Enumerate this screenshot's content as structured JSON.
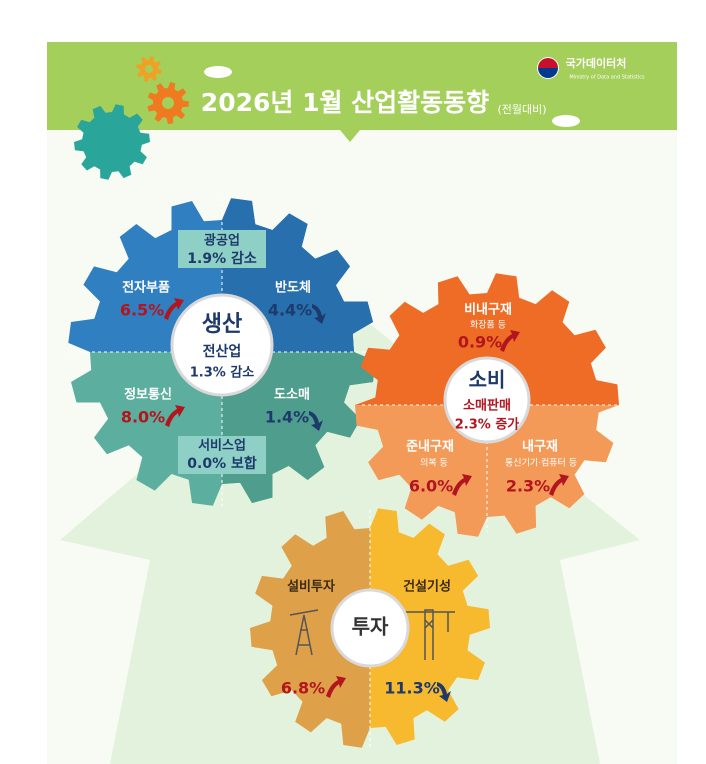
{
  "header": {
    "title": "2026년 1월 산업활동동향",
    "note": "(전월대비)",
    "logo": "국가데이터처",
    "logo_en": "Ministry of Data and Statistics"
  },
  "production": {
    "label": "생산",
    "total_label": "전산업",
    "total": "1.3% 감소",
    "items": [
      {
        "name": "광공업",
        "value": "1.9% 감소"
      },
      {
        "name": "반도체",
        "value": "4.4%"
      },
      {
        "name": "전자부품",
        "value": "6.5%"
      },
      {
        "name": "정보통신",
        "value": "8.0%"
      },
      {
        "name": "도소매",
        "value": "1.4%"
      },
      {
        "name": "서비스업",
        "value": "0.0% 보합"
      }
    ]
  },
  "consumption": {
    "label": "소비",
    "total_label": "소매판매",
    "total": "2.3% 증가",
    "items": [
      {
        "name": "비내구재",
        "note": "화장품 등",
        "value": "0.9%"
      },
      {
        "name": "준내구재",
        "note": "의복 등",
        "value": "6.0%"
      },
      {
        "name": "내구재",
        "note": "통신기기·컴퓨터 등",
        "value": "2.3%"
      }
    ]
  },
  "investment": {
    "label": "투자",
    "items": [
      {
        "name": "설비투자",
        "value": "6.8%"
      },
      {
        "name": "건설기성",
        "value": "11.3%"
      }
    ]
  }
}
